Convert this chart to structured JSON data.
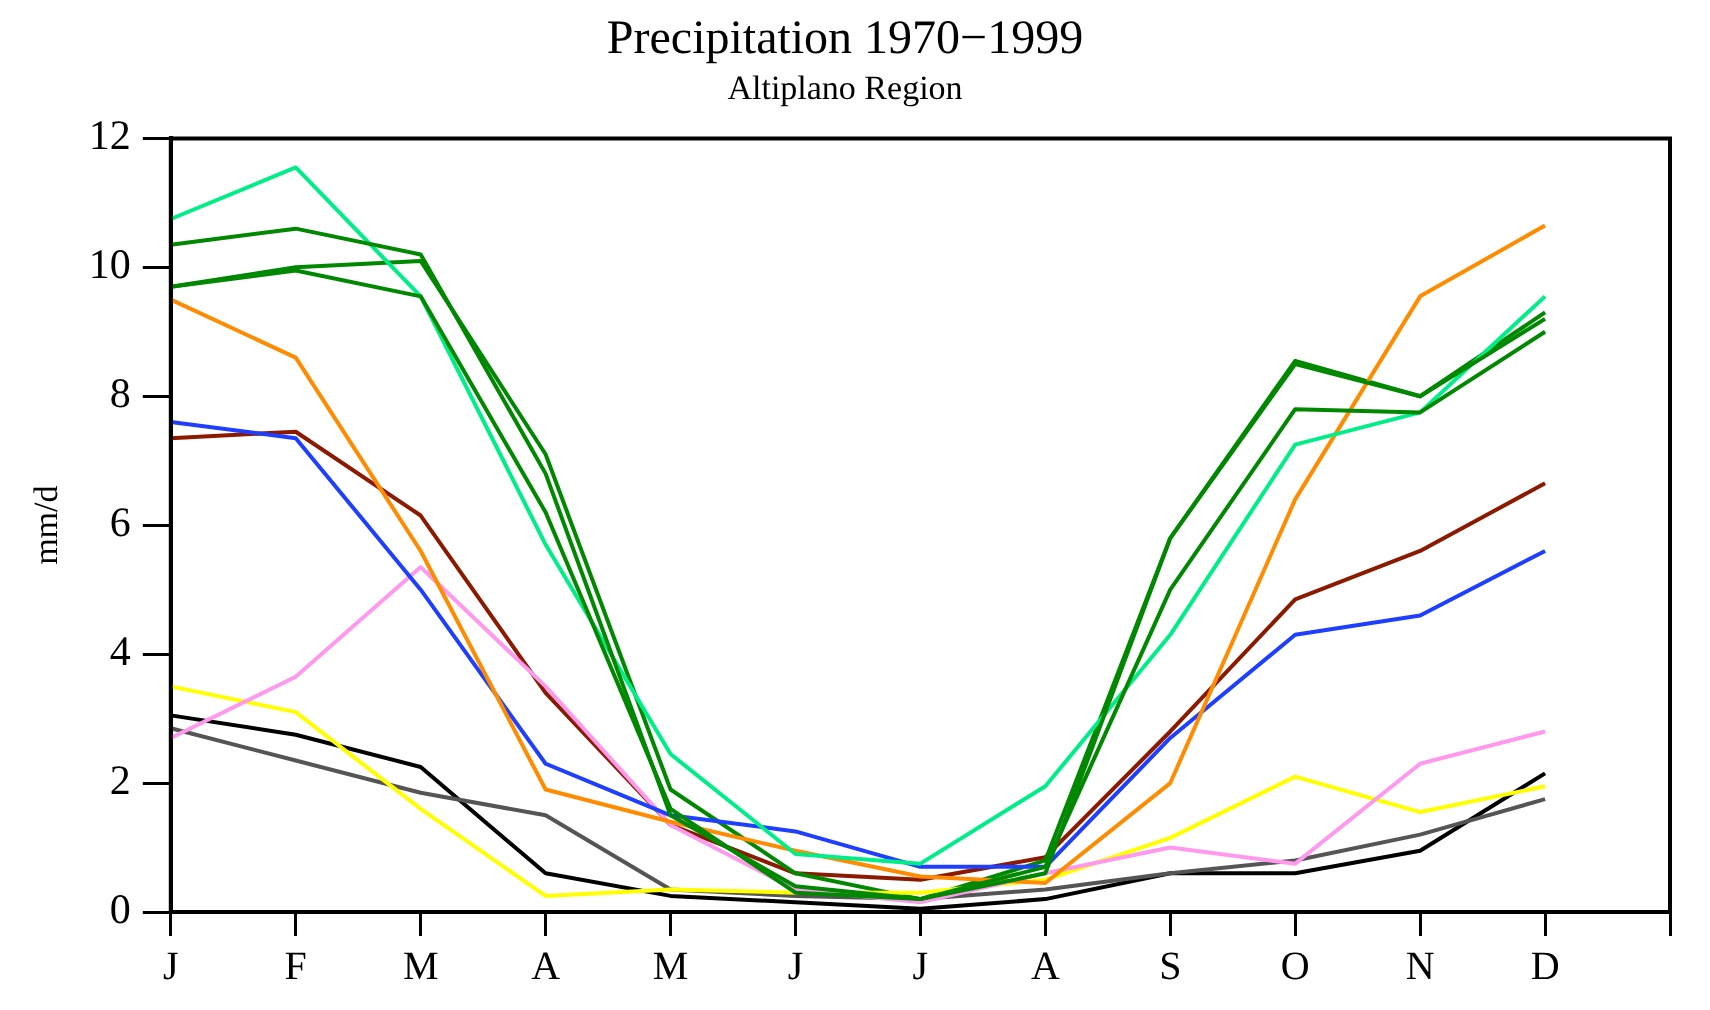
{
  "chart_data": {
    "type": "line",
    "title": "Precipitation 1970−1999",
    "subtitle": "Altiplano Region",
    "ylabel": "mm/d",
    "categories": [
      "J",
      "F",
      "M",
      "A",
      "M",
      "J",
      "J",
      "A",
      "S",
      "O",
      "N",
      "D",
      null
    ],
    "ylim": [
      0,
      12
    ],
    "yticks": [
      0,
      2,
      4,
      6,
      8,
      10,
      12
    ],
    "grid": false,
    "legend": false,
    "marker": "none",
    "line_style": "solid",
    "series": [
      {
        "color": "#008800",
        "values": [
          10.35,
          10.6,
          10.2,
          6.8,
          1.5,
          0.4,
          0.2,
          0.7,
          5.0,
          7.8,
          7.75,
          9.0,
          null
        ]
      },
      {
        "color": "#008800",
        "values": [
          9.7,
          9.95,
          9.55,
          6.2,
          1.6,
          0.3,
          0.2,
          0.6,
          5.8,
          8.5,
          8.0,
          9.2,
          null
        ]
      },
      {
        "color": "#00ee88",
        "values": [
          10.75,
          11.55,
          9.55,
          5.7,
          2.45,
          0.9,
          0.75,
          1.95,
          4.3,
          7.25,
          7.75,
          9.55,
          null
        ]
      },
      {
        "color": "#ff8c00",
        "values": [
          9.5,
          8.6,
          5.6,
          1.9,
          1.4,
          0.95,
          0.55,
          0.45,
          2.0,
          6.4,
          9.55,
          10.65,
          null
        ]
      },
      {
        "color": "#1f3fff",
        "values": [
          7.6,
          7.35,
          5.0,
          2.3,
          1.5,
          1.25,
          0.7,
          0.7,
          2.7,
          4.3,
          4.6,
          5.6,
          null
        ]
      },
      {
        "color": "#ff99ee",
        "values": [
          2.7,
          3.65,
          5.35,
          3.5,
          1.35,
          0.35,
          0.15,
          0.6,
          1.0,
          0.75,
          2.3,
          2.8,
          null
        ]
      },
      {
        "color": "#ffff00",
        "values": [
          3.5,
          3.1,
          1.6,
          0.25,
          0.35,
          0.3,
          0.3,
          0.5,
          1.15,
          2.1,
          1.55,
          1.95,
          null
        ]
      },
      {
        "color": "#008800",
        "values": [
          9.7,
          10.0,
          10.1,
          7.1,
          1.9,
          0.6,
          0.2,
          0.8,
          5.8,
          8.55,
          8.0,
          9.3,
          null
        ]
      },
      {
        "color": "#8b1a00",
        "values": [
          7.35,
          7.45,
          6.15,
          3.4,
          1.35,
          0.6,
          0.5,
          0.85,
          2.8,
          4.85,
          5.6,
          6.65,
          null
        ]
      },
      {
        "color": "#555555",
        "values": [
          2.85,
          2.35,
          1.85,
          1.5,
          0.35,
          0.25,
          0.2,
          0.35,
          0.6,
          0.8,
          1.2,
          1.75,
          null
        ]
      },
      {
        "color": "#000000",
        "values": [
          3.05,
          2.75,
          2.25,
          0.6,
          0.25,
          0.15,
          0.05,
          0.2,
          0.6,
          0.6,
          0.95,
          2.15,
          null
        ]
      }
    ]
  }
}
